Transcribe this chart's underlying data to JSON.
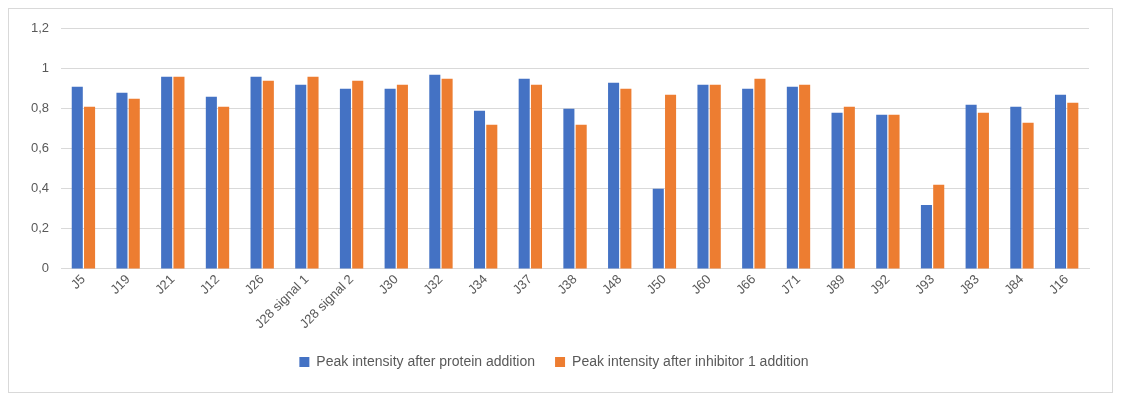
{
  "chart_data": {
    "type": "bar",
    "categories": [
      "J5",
      "J19",
      "J21",
      "J12",
      "J26",
      "J28 signal 1",
      "J28 signal 2",
      "J30",
      "J32",
      "J34",
      "J37",
      "J38",
      "J48",
      "J50",
      "J60",
      "J66",
      "J71",
      "J89",
      "J92",
      "J93",
      "J83",
      "J84",
      "J16"
    ],
    "series": [
      {
        "name": "Peak intensity after protein addition",
        "color": "#4472c4",
        "values": [
          0.91,
          0.88,
          0.96,
          0.86,
          0.96,
          0.92,
          0.9,
          0.9,
          0.97,
          0.79,
          0.95,
          0.8,
          0.93,
          0.4,
          0.92,
          0.9,
          0.91,
          0.78,
          0.77,
          0.32,
          0.82,
          0.81,
          0.87
        ]
      },
      {
        "name": "Peak intensity after inhibitor 1 addition",
        "color": "#ed7d31",
        "values": [
          0.81,
          0.85,
          0.96,
          0.81,
          0.94,
          0.96,
          0.94,
          0.92,
          0.95,
          0.72,
          0.92,
          0.72,
          0.9,
          0.87,
          0.92,
          0.95,
          0.92,
          0.81,
          0.77,
          0.42,
          0.78,
          0.73,
          0.83
        ]
      }
    ],
    "ylim": [
      0,
      1.2
    ],
    "yticks": [
      {
        "value": 0,
        "label": "0"
      },
      {
        "value": 0.2,
        "label": "0,2"
      },
      {
        "value": 0.4,
        "label": "0,4"
      },
      {
        "value": 0.6,
        "label": "0,6"
      },
      {
        "value": 0.8,
        "label": "0,8"
      },
      {
        "value": 1,
        "label": "1"
      },
      {
        "value": 1.2,
        "label": "1,2"
      }
    ],
    "grid": "y",
    "legend": "bottom"
  }
}
